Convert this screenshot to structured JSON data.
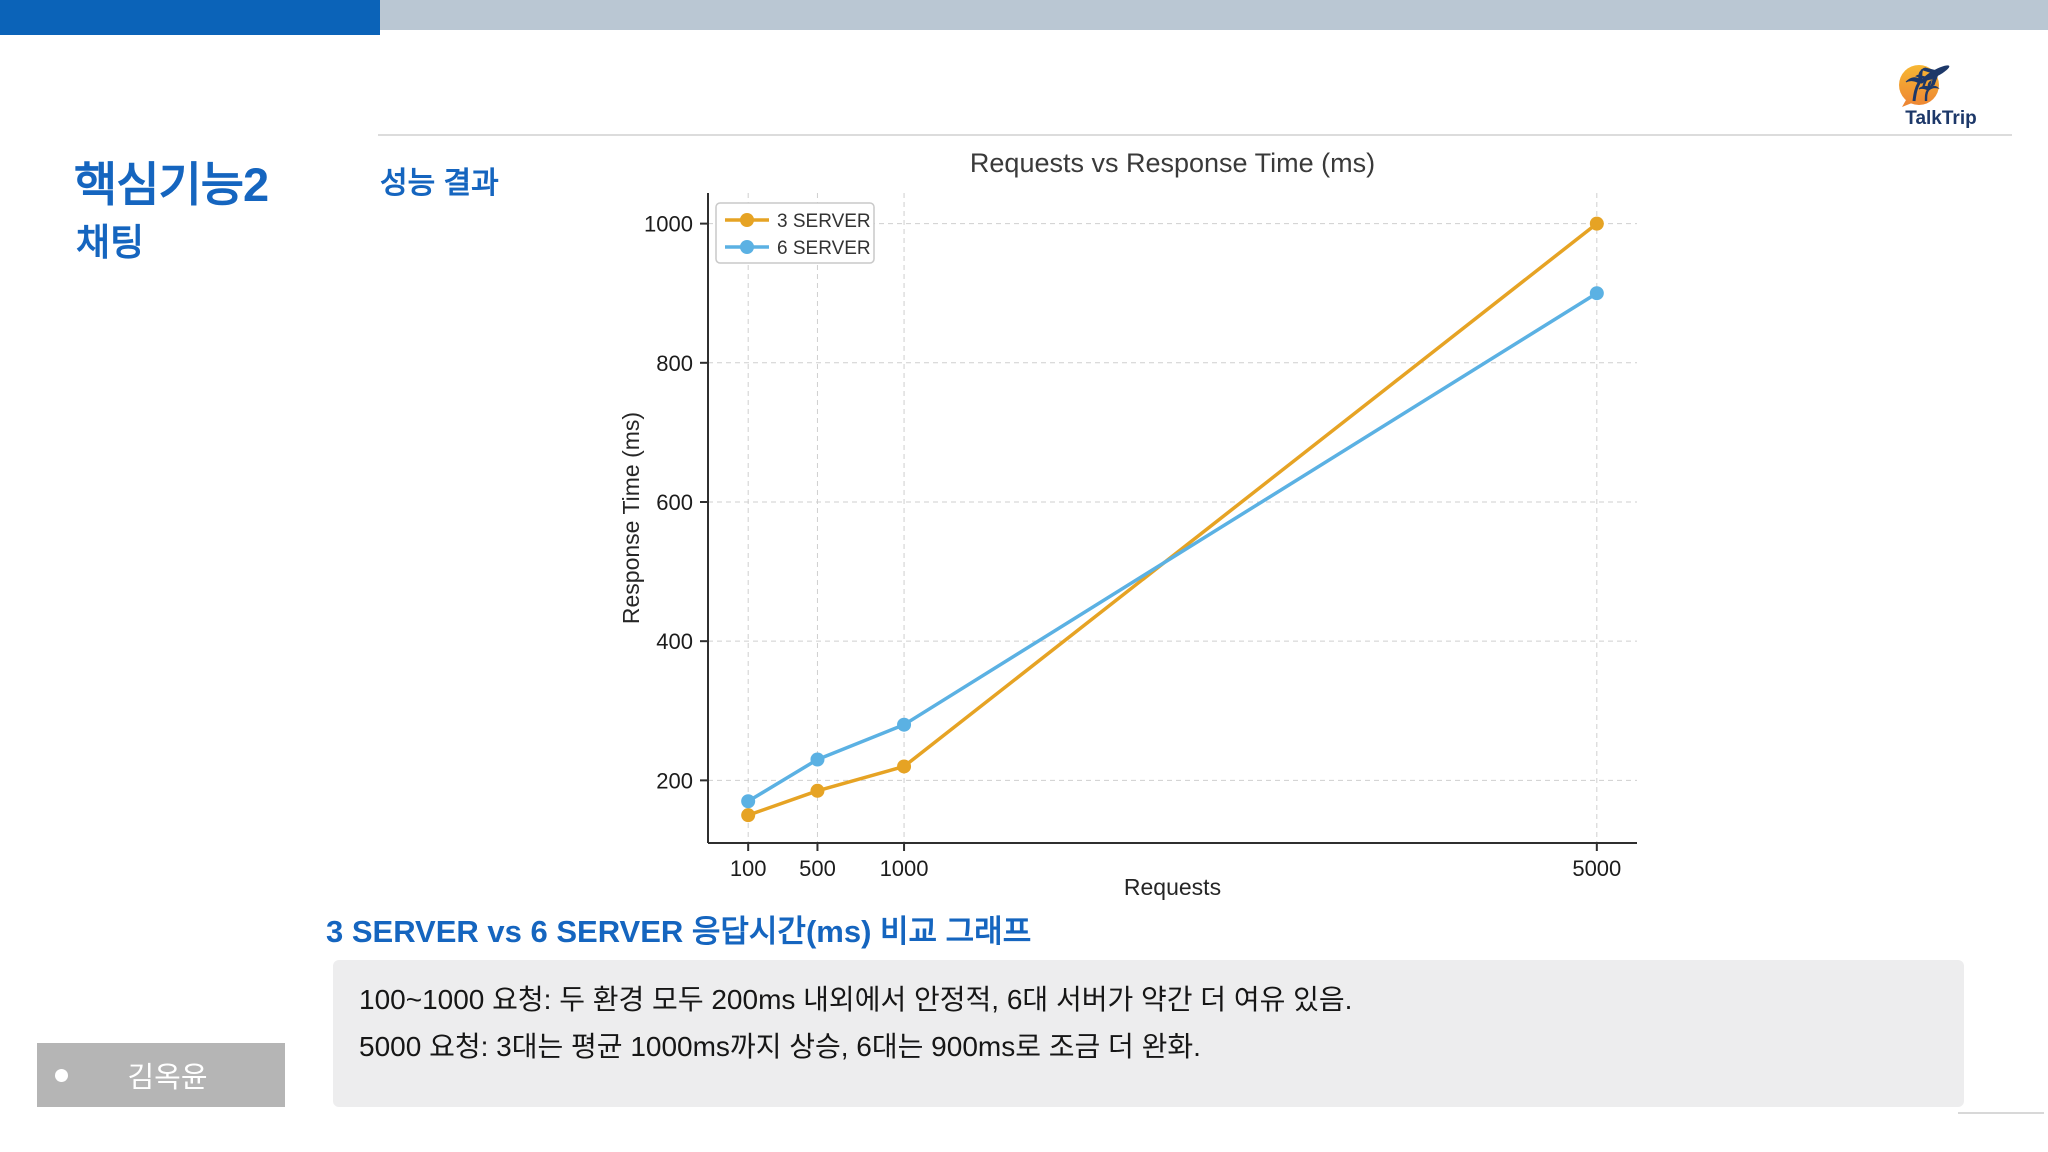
{
  "header": {
    "slide_title": "핵심기능2",
    "slide_subtitle": "채팅",
    "section_label": "성능 결과",
    "logo_text": "TalkTrip"
  },
  "chart_data": {
    "type": "line",
    "title": "Requests vs Response Time (ms)",
    "xlabel": "Requests",
    "ylabel": "Response Time (ms)",
    "x": [
      100,
      500,
      1000,
      5000
    ],
    "x_ticks": [
      100,
      500,
      1000,
      5000
    ],
    "y_ticks": [
      200,
      400,
      600,
      800,
      1000
    ],
    "xlim": [
      -132,
      5232
    ],
    "ylim": [
      110,
      1044
    ],
    "grid": true,
    "legend_position": "upper left",
    "series": [
      {
        "name": "3 SERVER",
        "color": "#E6A324",
        "values": [
          150,
          185,
          220,
          1000
        ]
      },
      {
        "name": "6 SERVER",
        "color": "#5BB1E3",
        "values": [
          170,
          230,
          280,
          900
        ]
      }
    ]
  },
  "caption": "3 SERVER vs 6 SERVER 응답시간(ms) 비교 그래프",
  "notes": {
    "lines": [
      "100~1000 요청: 두 환경 모두 200ms 내외에서 안정적, 6대 서버가 약간 더 여유 있음.",
      "5000 요청: 3대는 평균 1000ms까지 상승, 6대는 900ms로 조금 더 완화."
    ]
  },
  "footer": {
    "author": "김옥윤"
  },
  "colors": {
    "accent_blue": "#1565BF",
    "topbar_blue": "#0B63B8",
    "topbar_gray": "#BAC7D3",
    "notes_bg": "#EDEDEE",
    "name_box_bg": "#B5B5B5",
    "logo_navy": "#1D3869",
    "logo_orange": "#F59E2B",
    "series_orange": "#E6A324",
    "series_blue": "#5BB1E3"
  }
}
